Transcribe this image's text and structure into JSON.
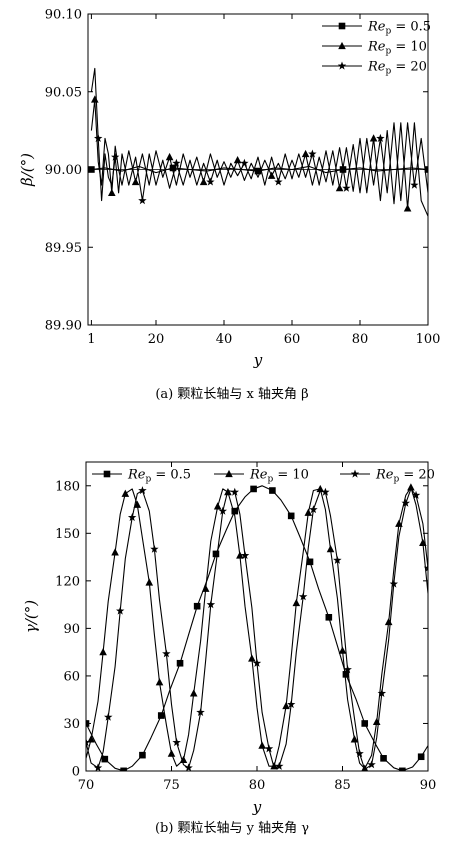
{
  "chart_data": [
    {
      "type": "line",
      "panel": "a",
      "caption": "(a) 颗粒长轴与 x 轴夹角 β",
      "xlabel": "y",
      "ylabel": "β/(°)",
      "xlim": [
        0,
        100
      ],
      "ylim": [
        89.9,
        90.1
      ],
      "xticks": [
        "1",
        "20",
        "40",
        "60",
        "80",
        "100"
      ],
      "xtick_values": [
        1,
        20,
        40,
        60,
        80,
        100
      ],
      "yticks": [
        "89.90",
        "89.95",
        "90.00",
        "90.05",
        "90.10"
      ],
      "ytick_values": [
        89.9,
        89.95,
        90.0,
        90.05,
        90.1
      ],
      "legend_position": "top-right",
      "grid": false,
      "series": [
        {
          "name": "Re_p=0.5",
          "marker": "square",
          "x": [
            1,
            5,
            10,
            15,
            20,
            25,
            30,
            35,
            40,
            45,
            50,
            55,
            60,
            65,
            70,
            75,
            80,
            85,
            90,
            95,
            100
          ],
          "y": [
            90.0,
            90.001,
            89.999,
            90.002,
            89.998,
            90.001,
            90.0,
            89.999,
            90.001,
            90.0,
            89.999,
            90.001,
            90.0,
            90.002,
            89.998,
            90.0,
            90.001,
            89.999,
            90.0,
            90.001,
            90.0
          ]
        },
        {
          "name": "Re_p=10",
          "marker": "triangle",
          "x": [
            1,
            2,
            3,
            4,
            5,
            6,
            7,
            8,
            9,
            10,
            12,
            14,
            16,
            18,
            20,
            22,
            24,
            26,
            28,
            30,
            32,
            34,
            36,
            38,
            40,
            42,
            44,
            46,
            48,
            50,
            52,
            54,
            56,
            58,
            60,
            62,
            64,
            66,
            68,
            70,
            72,
            74,
            76,
            78,
            80,
            82,
            84,
            86,
            88,
            90,
            92,
            94,
            96,
            98,
            100
          ],
          "y": [
            90.025,
            90.045,
            90.005,
            89.99,
            90.02,
            90.01,
            89.985,
            90.015,
            90.0,
            89.99,
            90.012,
            89.992,
            90.01,
            89.99,
            90.012,
            89.995,
            90.008,
            89.99,
            90.01,
            89.995,
            90.008,
            89.992,
            90.01,
            89.995,
            90.005,
            89.995,
            90.006,
            89.993,
            90.004,
            89.995,
            90.006,
            89.996,
            90.004,
            89.994,
            90.006,
            89.995,
            90.01,
            89.99,
            90.008,
            89.992,
            90.012,
            89.988,
            90.014,
            89.986,
            90.02,
            89.985,
            90.02,
            89.98,
            90.025,
            89.978,
            90.03,
            89.975,
            90.03,
            89.98,
            89.97
          ]
        },
        {
          "name": "Re_p=20",
          "marker": "star",
          "x": [
            1,
            2,
            3,
            4,
            5,
            6,
            7,
            8,
            9,
            10,
            12,
            14,
            16,
            18,
            20,
            22,
            24,
            26,
            28,
            30,
            32,
            34,
            36,
            38,
            40,
            42,
            44,
            46,
            48,
            50,
            52,
            54,
            56,
            58,
            60,
            62,
            64,
            66,
            68,
            70,
            72,
            74,
            76,
            78,
            80,
            82,
            84,
            86,
            88,
            90,
            92,
            94,
            96,
            98,
            100
          ],
          "y": [
            90.05,
            90.065,
            90.02,
            89.98,
            90.01,
            89.995,
            89.99,
            90.008,
            89.985,
            90.01,
            89.99,
            90.008,
            89.98,
            90.01,
            89.99,
            90.006,
            89.988,
            90.004,
            89.99,
            90.006,
            89.99,
            90.004,
            89.992,
            90.006,
            89.99,
            90.004,
            89.996,
            90.004,
            89.994,
            90.008,
            89.99,
            90.008,
            89.992,
            90.01,
            89.994,
            90.01,
            89.995,
            90.01,
            89.99,
            90.012,
            89.99,
            90.014,
            89.988,
            90.016,
            89.985,
            90.02,
            89.99,
            90.02,
            89.985,
            90.03,
            89.98,
            90.03,
            89.99,
            90.02,
            89.985
          ]
        }
      ]
    },
    {
      "type": "line",
      "panel": "b",
      "caption": "(b) 颗粒长轴与 y 轴夹角 γ",
      "xlabel": "y",
      "ylabel": "γ/(°)",
      "xlim": [
        70,
        90
      ],
      "ylim": [
        0,
        195
      ],
      "xticks": [
        "70",
        "75",
        "80",
        "85",
        "90"
      ],
      "xtick_values": [
        70,
        75,
        80,
        85,
        90
      ],
      "yticks": [
        "0",
        "30",
        "60",
        "90",
        "120",
        "150",
        "180"
      ],
      "ytick_values": [
        0,
        30,
        60,
        90,
        120,
        150,
        180
      ],
      "legend_position": "top",
      "grid": false,
      "series": [
        {
          "name": "Re_p=0.5",
          "marker": "square",
          "x": [
            70.0,
            70.6,
            71.1,
            71.7,
            72.2,
            72.7,
            73.3,
            73.8,
            74.4,
            74.9,
            75.5,
            76.0,
            76.5,
            77.1,
            77.6,
            78.2,
            78.7,
            79.3,
            79.8,
            80.3,
            80.9,
            81.4,
            82.0,
            82.5,
            83.1,
            83.6,
            84.2,
            84.7,
            85.2,
            85.8,
            86.3,
            86.9,
            87.4,
            88.0,
            88.5,
            89.1,
            89.6,
            90.0
          ],
          "y": [
            30.0,
            17.0,
            7.5,
            1.7,
            0.1,
            3.0,
            10.0,
            21.0,
            35.0,
            51.0,
            68.0,
            86.0,
            104.0,
            121.0,
            137.0,
            152.0,
            164.0,
            173.0,
            178.0,
            180.0,
            177.0,
            171.0,
            161.0,
            148.0,
            132.0,
            115.0,
            97.0,
            79.0,
            61.0,
            45.0,
            30.0,
            17.5,
            8.0,
            2.0,
            0.1,
            2.5,
            9.0,
            16.0
          ]
        },
        {
          "name": "Re_p=10",
          "marker": "triangle",
          "x": [
            70.0,
            70.3,
            70.7,
            71.0,
            71.3,
            71.7,
            72.0,
            72.3,
            72.7,
            73.0,
            73.3,
            73.7,
            74.0,
            74.3,
            74.7,
            75.0,
            75.3,
            75.7,
            76.0,
            76.3,
            76.7,
            77.0,
            77.3,
            77.7,
            78.0,
            78.3,
            78.7,
            79.0,
            79.3,
            79.7,
            80.0,
            80.3,
            80.7,
            81.0,
            81.3,
            81.7,
            82.0,
            82.3,
            82.7,
            83.0,
            83.3,
            83.7,
            84.0,
            84.3,
            84.7,
            85.0,
            85.3,
            85.7,
            86.0,
            86.3,
            86.7,
            87.0,
            87.3,
            87.7,
            88.0,
            88.3,
            88.7,
            89.0,
            89.3,
            89.7,
            90.0
          ],
          "y": [
            8.0,
            20.0,
            44.0,
            75.0,
            107.0,
            138.0,
            162.0,
            175.0,
            178.0,
            168.0,
            147.0,
            119.0,
            86.0,
            56.0,
            29.0,
            11.0,
            3.0,
            7.0,
            23.0,
            49.0,
            82.0,
            115.0,
            145.0,
            167.0,
            178.0,
            176.0,
            161.0,
            136.0,
            104.0,
            71.0,
            40.0,
            16.0,
            3.0,
            3.0,
            16.0,
            41.0,
            72.0,
            106.0,
            138.0,
            163.0,
            177.0,
            178.0,
            165.0,
            140.0,
            109.0,
            76.0,
            45.0,
            20.0,
            5.0,
            1.5,
            10.0,
            31.0,
            61.0,
            94.0,
            127.0,
            156.0,
            174.0,
            179.0,
            168.0,
            144.0,
            112.0
          ]
        },
        {
          "name": "Re_p=20",
          "marker": "star",
          "x": [
            70.0,
            70.3,
            70.7,
            71.0,
            71.3,
            71.7,
            72.0,
            72.3,
            72.7,
            73.0,
            73.3,
            73.7,
            74.0,
            74.3,
            74.7,
            75.0,
            75.3,
            75.7,
            76.0,
            76.3,
            76.7,
            77.0,
            77.3,
            77.7,
            78.0,
            78.3,
            78.7,
            79.0,
            79.3,
            79.7,
            80.0,
            80.3,
            80.7,
            81.0,
            81.3,
            81.7,
            82.0,
            82.3,
            82.7,
            83.0,
            83.3,
            83.7,
            84.0,
            84.3,
            84.7,
            85.0,
            85.3,
            85.7,
            86.0,
            86.3,
            86.7,
            87.0,
            87.3,
            87.7,
            88.0,
            88.3,
            88.7,
            89.0,
            89.3,
            89.7,
            90.0
          ],
          "y": [
            18.0,
            5.0,
            2.0,
            12.0,
            34.0,
            66.0,
            101.0,
            134.0,
            160.0,
            175.0,
            177.0,
            164.0,
            140.0,
            108.0,
            74.0,
            42.0,
            18.0,
            4.0,
            2.0,
            13.0,
            37.0,
            70.0,
            105.0,
            139.0,
            164.0,
            177.0,
            176.0,
            162.0,
            136.0,
            103.0,
            68.0,
            37.0,
            14.0,
            2.0,
            3.0,
            17.0,
            42.0,
            75.0,
            110.0,
            141.0,
            165.0,
            177.0,
            176.0,
            161.0,
            133.0,
            99.0,
            64.0,
            33.0,
            11.0,
            1.0,
            4.0,
            21.0,
            49.0,
            83.0,
            118.0,
            148.0,
            169.0,
            178.0,
            174.0,
            156.0,
            128.0
          ]
        }
      ]
    }
  ],
  "icons": {
    "Re_p=0.5": "square-marker-icon",
    "Re_p=10": "triangle-marker-icon",
    "Re_p=20": "star-marker-icon"
  },
  "colors": {
    "line": "#000000",
    "background": "#ffffff"
  }
}
